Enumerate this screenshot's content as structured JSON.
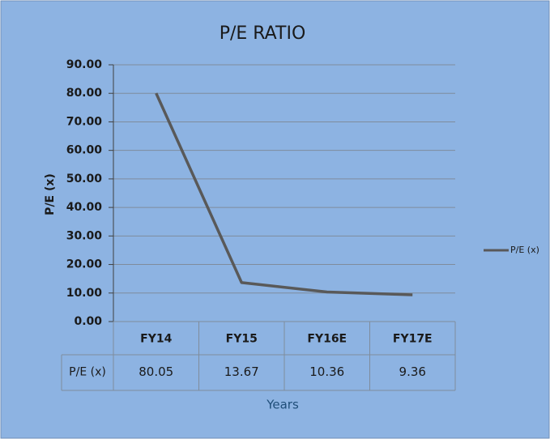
{
  "chart_data": {
    "type": "line",
    "title": "P/E RATIO",
    "x_label": "Years",
    "y_label": "P/E (x)",
    "categories": [
      "FY14",
      "FY15",
      "FY16E",
      "FY17E"
    ],
    "series": [
      {
        "name": "P/E (x)",
        "color": "#595959",
        "values": [
          80.05,
          13.67,
          10.36,
          9.36
        ]
      }
    ],
    "ylim": [
      0,
      90
    ],
    "yticks": [
      {
        "value": 0,
        "label": "0.00"
      },
      {
        "value": 10,
        "label": "10.00"
      },
      {
        "value": 20,
        "label": "20.00"
      },
      {
        "value": 30,
        "label": "30.00"
      },
      {
        "value": 40,
        "label": "40.00"
      },
      {
        "value": 50,
        "label": "50.00"
      },
      {
        "value": 60,
        "label": "60.00"
      },
      {
        "value": 70,
        "label": "70.00"
      },
      {
        "value": 80,
        "label": "80.00"
      },
      {
        "value": 90,
        "label": "90.00"
      }
    ],
    "grid": true,
    "legend": "right",
    "data_table": true
  }
}
